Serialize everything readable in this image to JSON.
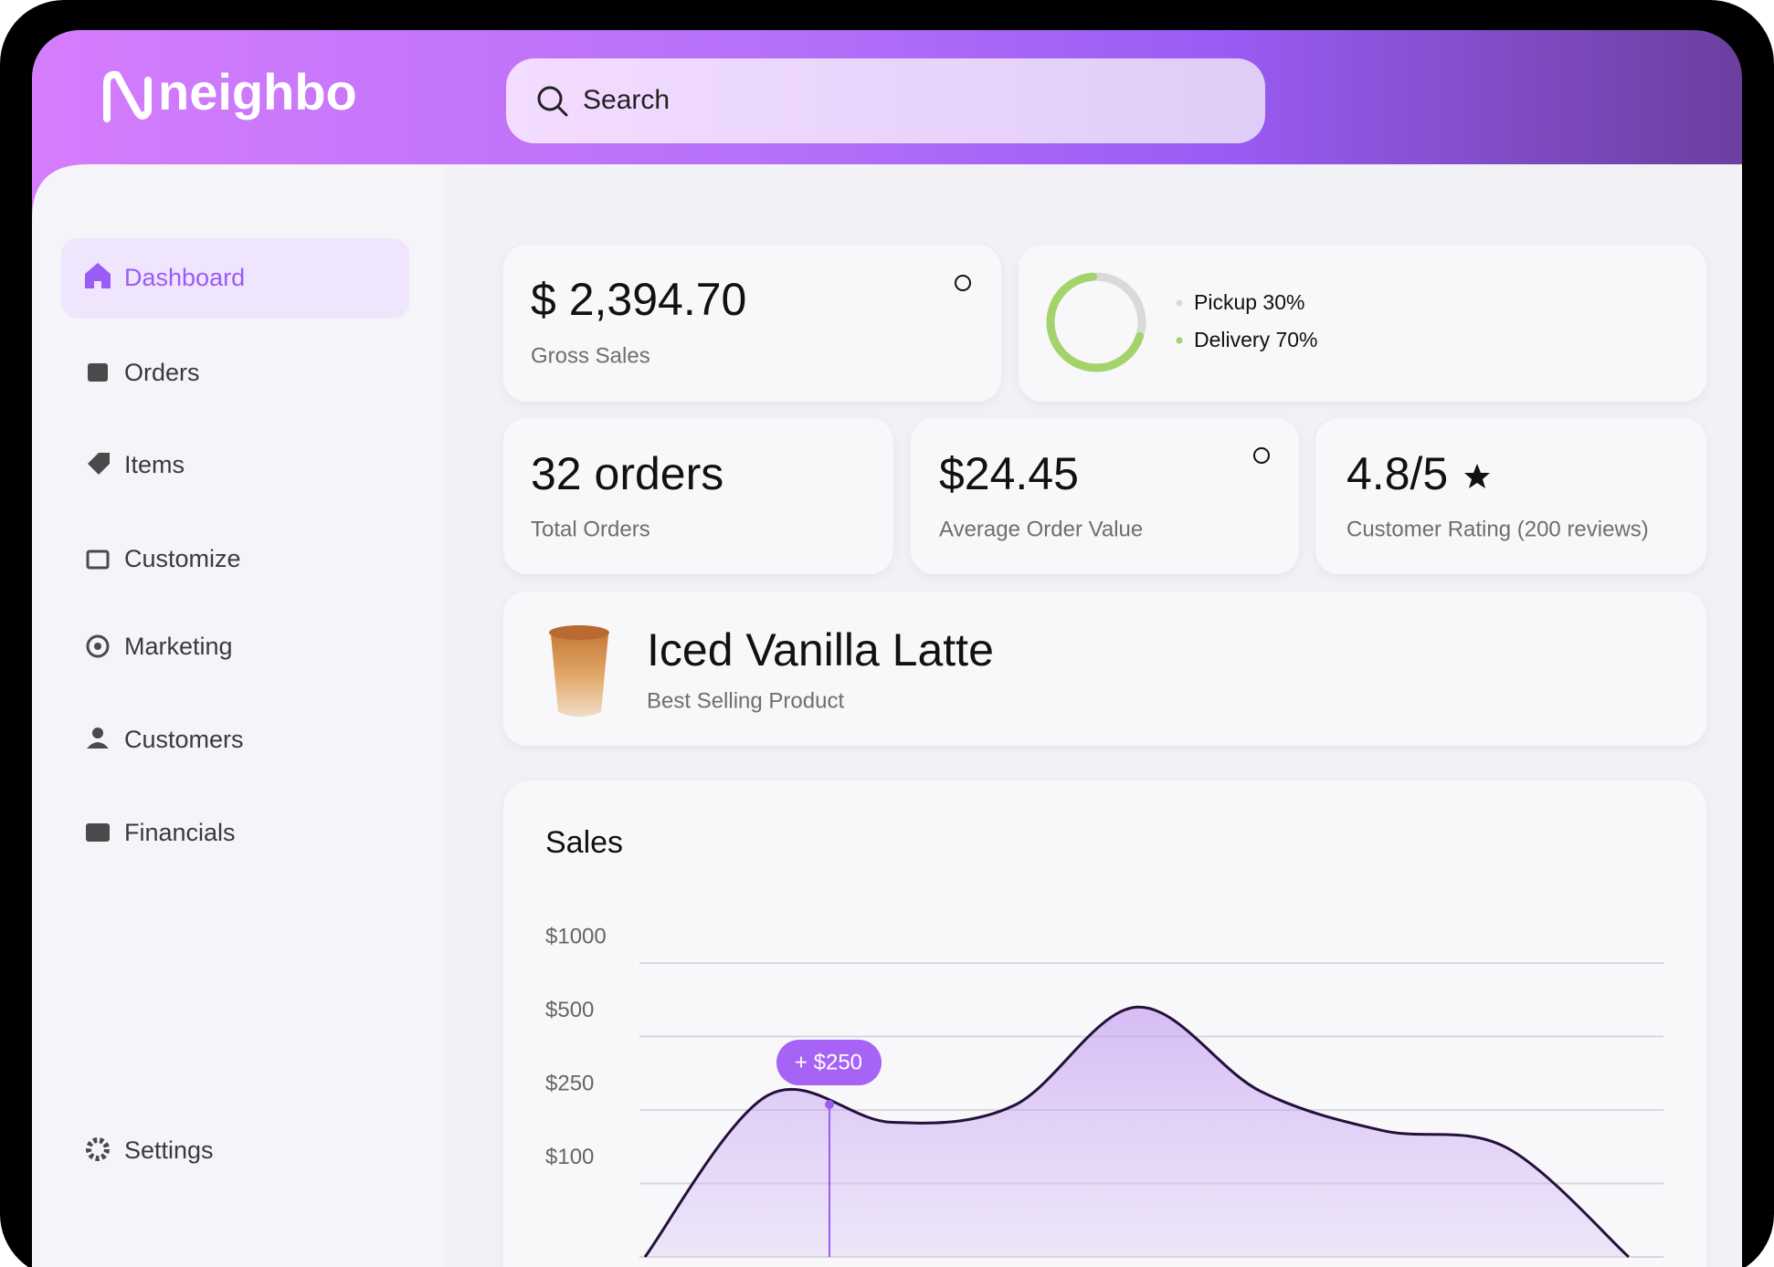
{
  "header": {
    "logo": "neighbo",
    "search_placeholder": "Search"
  },
  "sidebar": {
    "items": [
      "Dashboard",
      "Orders",
      "Items",
      "Customize",
      "Marketing",
      "Customers",
      "Financials"
    ],
    "settings": "Settings"
  },
  "gross_sales": {
    "value": "$ 2,394.70",
    "label": "Gross Sales"
  },
  "order_split": {
    "type": "pie",
    "values": [
      30,
      70
    ],
    "value_labels": [
      "Pickup 30%",
      "Delivery 70%"
    ],
    "colors": [
      "#d9d9d9",
      "#a3d36a"
    ]
  },
  "total_orders": {
    "value": "32 orders",
    "label": "Total Orders"
  },
  "average_order": {
    "value": "$24.45",
    "label": "Average Order Value"
  },
  "rating": {
    "value": "4.8/5",
    "label": "Customer Rating (200 reviews)"
  },
  "best_seller": {
    "name": "Iced Vanilla Latte",
    "label": "Best Selling Product"
  },
  "chart_data": {
    "type": "line",
    "title": "Sales",
    "categories": [
      null,
      null,
      null,
      null,
      null,
      null,
      null,
      null,
      null
    ],
    "values": [
      0,
      300,
      225,
      265,
      700,
      315,
      208,
      174,
      0
    ],
    "color": "#24103a",
    "fill": "#b98cf0",
    "ylim": [
      0,
      1000
    ],
    "yticks": [
      {
        "value": 1000,
        "label": "$1000"
      },
      {
        "value": 500,
        "label": "$500"
      },
      {
        "value": 250,
        "label": "$250"
      },
      {
        "value": 100,
        "label": "$100"
      }
    ],
    "grid": true,
    "annotation": "+ $250"
  }
}
